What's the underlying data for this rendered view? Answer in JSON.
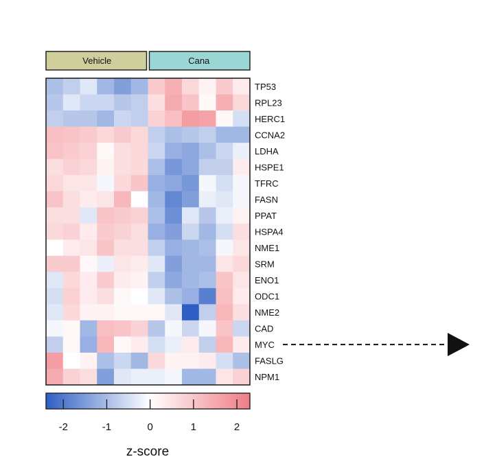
{
  "chart_data": {
    "type": "heatmap",
    "title": "",
    "groups": [
      {
        "name": "Vehicle",
        "columns": 6,
        "color": "#cfcf9e"
      },
      {
        "name": "Cana",
        "columns": 6,
        "color": "#9ad6d3"
      }
    ],
    "rows": [
      "TP53",
      "RPL23",
      "HERC1",
      "CCNA2",
      "LDHA",
      "HSPE1",
      "TFRC",
      "FASN",
      "PPAT",
      "HSPA4",
      "NME1",
      "SRM",
      "ENO1",
      "ODC1",
      "NME2",
      "CAD",
      "MYC",
      "FASLG",
      "NPM1"
    ],
    "values": [
      [
        -0.8,
        -0.6,
        -0.3,
        -0.9,
        -1.2,
        -0.9,
        0.8,
        1.2,
        0.6,
        0.2,
        0.8,
        0.3
      ],
      [
        -0.7,
        -0.3,
        -0.5,
        -0.5,
        -0.7,
        -0.6,
        0.5,
        1.3,
        0.9,
        0.1,
        1.2,
        0.6
      ],
      [
        -0.6,
        -0.7,
        -0.7,
        -0.9,
        -0.5,
        -0.6,
        0.7,
        1.0,
        1.5,
        1.4,
        0.1,
        -0.4
      ],
      [
        1.0,
        0.9,
        0.8,
        0.6,
        0.8,
        0.6,
        -0.6,
        -0.8,
        -0.7,
        -0.6,
        -0.9,
        -0.9
      ],
      [
        0.9,
        0.8,
        0.7,
        0.1,
        0.5,
        0.6,
        -0.5,
        -1.0,
        -1.1,
        -0.8,
        -0.5,
        -0.2
      ],
      [
        0.5,
        0.7,
        0.6,
        0.2,
        0.5,
        0.6,
        -0.8,
        -1.3,
        -1.1,
        -0.6,
        -0.6,
        0.3
      ],
      [
        0.6,
        0.4,
        0.4,
        -0.1,
        0.6,
        0.9,
        -1.0,
        -1.1,
        -1.3,
        -0.1,
        -0.4,
        -0.1
      ],
      [
        0.9,
        0.5,
        0.3,
        0.4,
        1.1,
        0.0,
        -0.9,
        -1.5,
        -1.2,
        -0.2,
        -0.3,
        -0.1
      ],
      [
        0.5,
        0.5,
        -0.3,
        0.9,
        0.8,
        0.7,
        -0.8,
        -1.4,
        -0.3,
        -0.7,
        -0.2,
        0.2
      ],
      [
        0.6,
        0.7,
        0.3,
        0.8,
        0.7,
        0.5,
        -1.0,
        -1.2,
        -0.5,
        -0.9,
        -0.4,
        0.5
      ],
      [
        0.0,
        0.3,
        0.4,
        0.9,
        0.5,
        0.5,
        -0.6,
        -1.0,
        -0.9,
        -0.8,
        -0.1,
        0.4
      ],
      [
        0.8,
        0.8,
        0.1,
        -0.2,
        0.4,
        0.3,
        -0.3,
        -1.2,
        -0.9,
        -0.9,
        0.4,
        0.6
      ],
      [
        -0.3,
        0.6,
        0.3,
        0.8,
        0.3,
        0.2,
        -0.6,
        -1.1,
        -0.9,
        -0.8,
        0.9,
        0.4
      ],
      [
        -0.4,
        0.7,
        0.3,
        0.5,
        0.1,
        0.0,
        -0.3,
        -0.8,
        -1.0,
        -1.6,
        1.0,
        0.3
      ],
      [
        -0.3,
        0.6,
        0.2,
        0.2,
        0.1,
        0.1,
        0.1,
        -0.3,
        -2.0,
        -0.6,
        1.1,
        0.5
      ],
      [
        -0.1,
        0.1,
        -0.9,
        1.0,
        0.9,
        0.7,
        -0.7,
        -0.1,
        -0.5,
        -0.1,
        0.9,
        -0.5
      ],
      [
        -0.6,
        0.1,
        -1.0,
        1.1,
        0.1,
        0.3,
        -0.4,
        -0.2,
        0.3,
        -0.6,
        1.1,
        0.3
      ],
      [
        1.5,
        0.0,
        0.2,
        -0.8,
        -0.5,
        -0.9,
        0.6,
        0.2,
        0.2,
        0.3,
        -0.4,
        -0.8
      ],
      [
        1.3,
        0.7,
        0.5,
        -1.2,
        -0.3,
        -0.2,
        -0.2,
        -0.1,
        -0.9,
        -0.9,
        0.4,
        0.7
      ]
    ],
    "colorbar": {
      "title": "z-score",
      "range": [
        -2.4,
        2.3
      ],
      "ticks": [
        -2,
        -1,
        0,
        1,
        2
      ],
      "tick_labels": [
        "-2",
        "-1",
        "0",
        "1",
        "2"
      ],
      "low_color": "#2f5fc4",
      "mid_color": "#ffffff",
      "high_color": "#f07c84"
    },
    "annotation": {
      "type": "dashed-arrow",
      "row": "MYC",
      "direction": "right"
    },
    "grid": false,
    "legend": "bottom"
  }
}
